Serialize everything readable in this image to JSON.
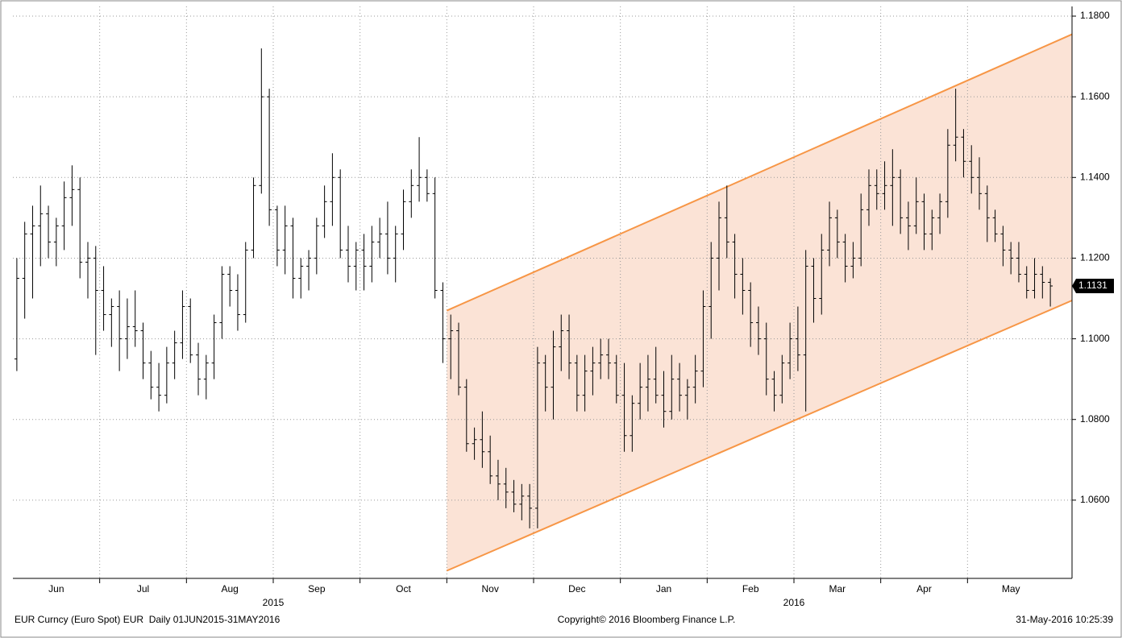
{
  "chart_data": {
    "type": "ohlc",
    "footer_left": "EUR Curncy (Euro Spot) EUR  Daily 01JUN2015-31MAY2016",
    "footer_center": "Copyright© 2016 Bloomberg Finance L.P.",
    "footer_right": "31-May-2016 10:25:39",
    "ylim": [
      1.0406,
      1.1824
    ],
    "yticks": [
      {
        "value": 1.06,
        "label": "1.0600"
      },
      {
        "value": 1.08,
        "label": "1.0800"
      },
      {
        "value": 1.1,
        "label": "1.1000"
      },
      {
        "value": 1.12,
        "label": "1.1200"
      },
      {
        "value": 1.14,
        "label": "1.1400"
      },
      {
        "value": 1.16,
        "label": "1.1600"
      },
      {
        "value": 1.18,
        "label": "1.1800"
      }
    ],
    "grid": true,
    "color": "#000000",
    "last_price": 1.1131,
    "channel": {
      "from": "Nov",
      "upper": [
        1.107,
        1.1755
      ],
      "lower": [
        1.0425,
        1.1095
      ],
      "color": "#f79646",
      "fill": "#fbe3d6"
    },
    "months": [
      {
        "label": "Jun",
        "bars": [
          [
            1.095,
            1.12,
            1.092,
            1.115
          ],
          [
            1.115,
            1.129,
            1.105,
            1.126
          ],
          [
            1.126,
            1.133,
            1.11,
            1.128
          ],
          [
            1.128,
            1.138,
            1.118,
            1.131
          ],
          [
            1.131,
            1.133,
            1.12,
            1.124
          ],
          [
            1.124,
            1.13,
            1.118,
            1.128
          ],
          [
            1.128,
            1.139,
            1.122,
            1.135
          ],
          [
            1.135,
            1.143,
            1.128,
            1.137
          ],
          [
            1.137,
            1.14,
            1.115,
            1.119
          ],
          [
            1.119,
            1.124,
            1.11,
            1.12
          ],
          [
            1.12,
            1.123,
            1.096,
            1.112
          ]
        ]
      },
      {
        "label": "Jul",
        "bars": [
          [
            1.112,
            1.118,
            1.102,
            1.106
          ],
          [
            1.106,
            1.11,
            1.098,
            1.108
          ],
          [
            1.108,
            1.112,
            1.092,
            1.1
          ],
          [
            1.1,
            1.11,
            1.095,
            1.103
          ],
          [
            1.103,
            1.112,
            1.098,
            1.102
          ],
          [
            1.102,
            1.104,
            1.09,
            1.094
          ],
          [
            1.094,
            1.097,
            1.085,
            1.088
          ],
          [
            1.088,
            1.094,
            1.082,
            1.086
          ],
          [
            1.086,
            1.098,
            1.084,
            1.094
          ],
          [
            1.094,
            1.102,
            1.09,
            1.099
          ],
          [
            1.099,
            1.112,
            1.095,
            1.108
          ]
        ]
      },
      {
        "label": "Aug",
        "bars": [
          [
            1.108,
            1.11,
            1.094,
            1.096
          ],
          [
            1.096,
            1.099,
            1.086,
            1.09
          ],
          [
            1.09,
            1.096,
            1.085,
            1.094
          ],
          [
            1.094,
            1.106,
            1.09,
            1.104
          ],
          [
            1.104,
            1.118,
            1.1,
            1.116
          ],
          [
            1.116,
            1.118,
            1.108,
            1.112
          ],
          [
            1.112,
            1.116,
            1.102,
            1.106
          ],
          [
            1.106,
            1.124,
            1.104,
            1.122
          ],
          [
            1.122,
            1.14,
            1.12,
            1.138
          ],
          [
            1.138,
            1.172,
            1.136,
            1.16
          ],
          [
            1.16,
            1.162,
            1.128,
            1.132
          ]
        ]
      },
      {
        "label": "Sep",
        "year": "2015",
        "bars": [
          [
            1.132,
            1.133,
            1.118,
            1.122
          ],
          [
            1.122,
            1.133,
            1.116,
            1.128
          ],
          [
            1.128,
            1.13,
            1.11,
            1.115
          ],
          [
            1.115,
            1.12,
            1.11,
            1.118
          ],
          [
            1.118,
            1.122,
            1.112,
            1.12
          ],
          [
            1.12,
            1.13,
            1.116,
            1.128
          ],
          [
            1.128,
            1.138,
            1.125,
            1.134
          ],
          [
            1.134,
            1.146,
            1.128,
            1.14
          ],
          [
            1.14,
            1.142,
            1.12,
            1.122
          ],
          [
            1.122,
            1.128,
            1.114,
            1.118
          ],
          [
            1.118,
            1.124,
            1.112,
            1.122
          ]
        ]
      },
      {
        "label": "Oct",
        "bars": [
          [
            1.122,
            1.126,
            1.112,
            1.118
          ],
          [
            1.118,
            1.128,
            1.114,
            1.124
          ],
          [
            1.124,
            1.13,
            1.12,
            1.126
          ],
          [
            1.126,
            1.134,
            1.116,
            1.12
          ],
          [
            1.12,
            1.128,
            1.114,
            1.126
          ],
          [
            1.126,
            1.137,
            1.122,
            1.134
          ],
          [
            1.134,
            1.142,
            1.13,
            1.138
          ],
          [
            1.138,
            1.15,
            1.134,
            1.14
          ],
          [
            1.14,
            1.142,
            1.134,
            1.136
          ],
          [
            1.136,
            1.14,
            1.11,
            1.112
          ],
          [
            1.112,
            1.114,
            1.094,
            1.1
          ]
        ]
      },
      {
        "label": "Nov",
        "bars": [
          [
            1.1,
            1.106,
            1.09,
            1.102
          ],
          [
            1.102,
            1.104,
            1.086,
            1.088
          ],
          [
            1.088,
            1.09,
            1.072,
            1.074
          ],
          [
            1.074,
            1.078,
            1.07,
            1.075
          ],
          [
            1.075,
            1.082,
            1.068,
            1.072
          ],
          [
            1.072,
            1.076,
            1.064,
            1.066
          ],
          [
            1.066,
            1.07,
            1.06,
            1.064
          ],
          [
            1.064,
            1.068,
            1.058,
            1.062
          ],
          [
            1.062,
            1.065,
            1.057,
            1.059
          ],
          [
            1.059,
            1.064,
            1.055,
            1.061
          ],
          [
            1.061,
            1.064,
            1.053,
            1.058
          ]
        ]
      },
      {
        "label": "Dec",
        "bars": [
          [
            1.058,
            1.098,
            1.053,
            1.094
          ],
          [
            1.094,
            1.096,
            1.082,
            1.088
          ],
          [
            1.088,
            1.102,
            1.08,
            1.098
          ],
          [
            1.098,
            1.106,
            1.092,
            1.102
          ],
          [
            1.102,
            1.106,
            1.09,
            1.094
          ],
          [
            1.094,
            1.096,
            1.082,
            1.086
          ],
          [
            1.086,
            1.096,
            1.082,
            1.092
          ],
          [
            1.092,
            1.098,
            1.086,
            1.094
          ],
          [
            1.094,
            1.1,
            1.09,
            1.096
          ],
          [
            1.096,
            1.1,
            1.09,
            1.094
          ],
          [
            1.094,
            1.096,
            1.084,
            1.086
          ]
        ]
      },
      {
        "label": "Jan",
        "bars": [
          [
            1.086,
            1.094,
            1.072,
            1.076
          ],
          [
            1.076,
            1.086,
            1.072,
            1.084
          ],
          [
            1.084,
            1.094,
            1.08,
            1.088
          ],
          [
            1.088,
            1.096,
            1.082,
            1.09
          ],
          [
            1.09,
            1.098,
            1.084,
            1.086
          ],
          [
            1.086,
            1.092,
            1.078,
            1.082
          ],
          [
            1.082,
            1.096,
            1.08,
            1.09
          ],
          [
            1.09,
            1.094,
            1.082,
            1.086
          ],
          [
            1.086,
            1.09,
            1.08,
            1.088
          ],
          [
            1.088,
            1.096,
            1.084,
            1.092
          ],
          [
            1.092,
            1.112,
            1.088,
            1.108
          ]
        ]
      },
      {
        "label": "Feb",
        "bars": [
          [
            1.108,
            1.124,
            1.1,
            1.12
          ],
          [
            1.12,
            1.134,
            1.112,
            1.13
          ],
          [
            1.13,
            1.138,
            1.12,
            1.124
          ],
          [
            1.124,
            1.126,
            1.11,
            1.116
          ],
          [
            1.116,
            1.12,
            1.106,
            1.112
          ],
          [
            1.112,
            1.114,
            1.098,
            1.104
          ],
          [
            1.104,
            1.108,
            1.096,
            1.1
          ],
          [
            1.1,
            1.104,
            1.086,
            1.09
          ],
          [
            1.09,
            1.092,
            1.082,
            1.086
          ],
          [
            1.086,
            1.096,
            1.084,
            1.094
          ],
          [
            1.094,
            1.104,
            1.09,
            1.1
          ]
        ]
      },
      {
        "label": "Mar",
        "year": "2016",
        "bars": [
          [
            1.1,
            1.108,
            1.092,
            1.096
          ],
          [
            1.096,
            1.122,
            1.082,
            1.118
          ],
          [
            1.118,
            1.12,
            1.104,
            1.11
          ],
          [
            1.11,
            1.126,
            1.106,
            1.122
          ],
          [
            1.122,
            1.134,
            1.118,
            1.13
          ],
          [
            1.13,
            1.132,
            1.12,
            1.124
          ],
          [
            1.124,
            1.126,
            1.114,
            1.118
          ],
          [
            1.118,
            1.124,
            1.115,
            1.12
          ],
          [
            1.12,
            1.136,
            1.118,
            1.132
          ],
          [
            1.132,
            1.142,
            1.128,
            1.138
          ],
          [
            1.138,
            1.142,
            1.132,
            1.136
          ]
        ]
      },
      {
        "label": "Apr",
        "bars": [
          [
            1.136,
            1.144,
            1.132,
            1.138
          ],
          [
            1.138,
            1.147,
            1.128,
            1.14
          ],
          [
            1.14,
            1.142,
            1.126,
            1.13
          ],
          [
            1.13,
            1.134,
            1.122,
            1.128
          ],
          [
            1.128,
            1.14,
            1.126,
            1.134
          ],
          [
            1.134,
            1.136,
            1.122,
            1.126
          ],
          [
            1.126,
            1.132,
            1.122,
            1.13
          ],
          [
            1.13,
            1.136,
            1.126,
            1.134
          ],
          [
            1.134,
            1.152,
            1.13,
            1.148
          ],
          [
            1.148,
            1.162,
            1.144,
            1.15
          ],
          [
            1.15,
            1.152,
            1.14,
            1.144
          ]
        ]
      },
      {
        "label": "May",
        "bars": [
          [
            1.144,
            1.148,
            1.136,
            1.14
          ],
          [
            1.14,
            1.145,
            1.132,
            1.136
          ],
          [
            1.136,
            1.138,
            1.124,
            1.13
          ],
          [
            1.13,
            1.132,
            1.124,
            1.126
          ],
          [
            1.126,
            1.128,
            1.118,
            1.122
          ],
          [
            1.122,
            1.124,
            1.116,
            1.12
          ],
          [
            1.12,
            1.124,
            1.114,
            1.116
          ],
          [
            1.116,
            1.118,
            1.11,
            1.112
          ],
          [
            1.112,
            1.12,
            1.11,
            1.116
          ],
          [
            1.116,
            1.118,
            1.11,
            1.114
          ],
          [
            1.114,
            1.115,
            1.108,
            1.1131
          ]
        ]
      }
    ]
  }
}
